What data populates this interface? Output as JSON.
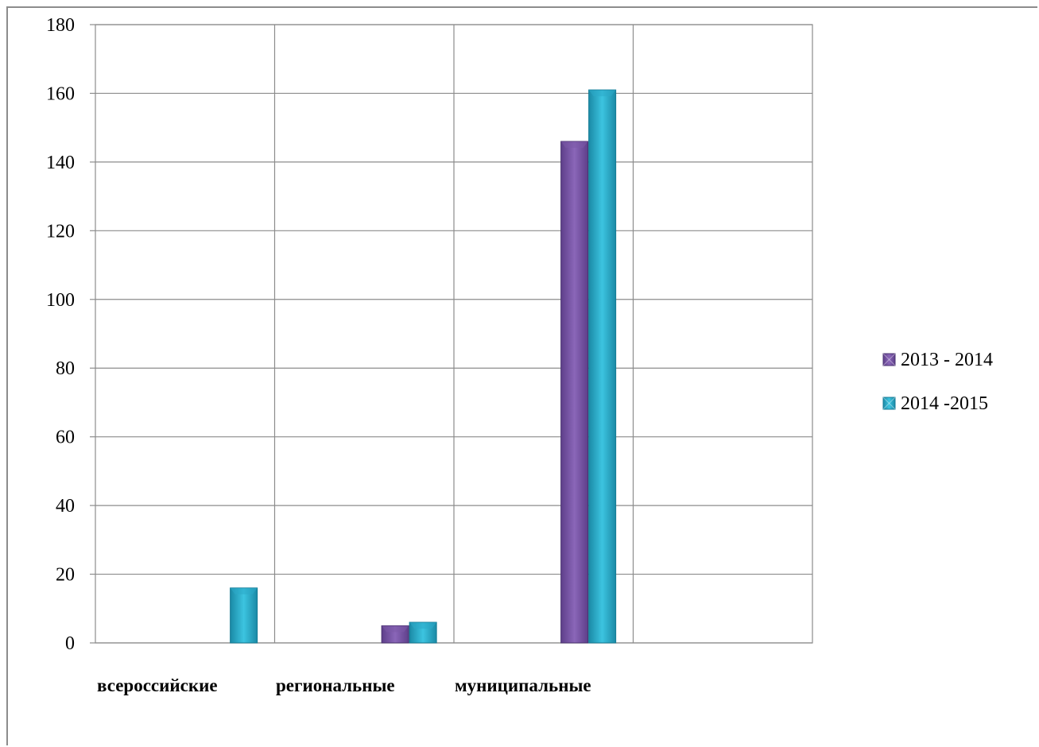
{
  "chart_data": {
    "type": "bar",
    "categories": [
      "всероссийские",
      "региональные",
      "муниципальные",
      ""
    ],
    "series": [
      {
        "name": "2013 - 2014",
        "values": [
          0,
          5,
          146,
          0
        ],
        "color": "#7b59a8"
      },
      {
        "name": "2014 -2015",
        "values": [
          16,
          6,
          161,
          0
        ],
        "color": "#2ba9c8"
      }
    ],
    "title": "",
    "xlabel": "",
    "ylabel": "",
    "ylim": [
      0,
      180
    ],
    "yticks": [
      0,
      20,
      40,
      60,
      80,
      100,
      120,
      140,
      160,
      180
    ],
    "grid": true,
    "legend": "right"
  }
}
